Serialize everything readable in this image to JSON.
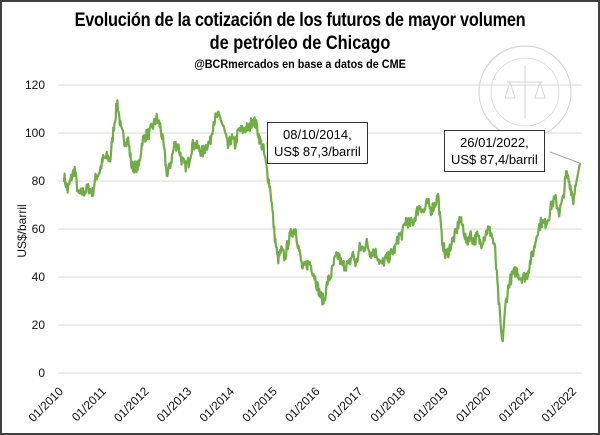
{
  "chart_data": {
    "type": "line",
    "title": "Evolución de la cotización de los futuros de mayor volumen",
    "title_line2": "de petróleo de Chicago",
    "subtitle": "@BCRmercados en base a datos de CME",
    "xlabel": "",
    "ylabel": "US$/barril",
    "ylim": [
      0,
      120
    ],
    "yticks": [
      0,
      20,
      40,
      60,
      80,
      100,
      120
    ],
    "xticks": [
      "01/2010",
      "01/2011",
      "01/2012",
      "01/2013",
      "01/2014",
      "01/2015",
      "01/2016",
      "01/2017",
      "01/2018",
      "01/2019",
      "01/2020",
      "01/2021",
      "01/2022"
    ],
    "grid": true,
    "line_color": "#70AD47",
    "x_start": "2010-01",
    "values_monthly": [
      82,
      76,
      81,
      85,
      74,
      75,
      76,
      77,
      75,
      82,
      84,
      89,
      90,
      89,
      103,
      113,
      101,
      97,
      97,
      86,
      86,
      86,
      97,
      99,
      100,
      103,
      106,
      103,
      94,
      82,
      88,
      95,
      95,
      89,
      86,
      88,
      95,
      95,
      93,
      92,
      95,
      96,
      105,
      107,
      106,
      101,
      94,
      98,
      95,
      101,
      101,
      102,
      102,
      106,
      103,
      97,
      93,
      84,
      76,
      59,
      47,
      51,
      48,
      55,
      59,
      60,
      51,
      43,
      45,
      46,
      42,
      37,
      32,
      30,
      38,
      41,
      47,
      49,
      45,
      45,
      45,
      50,
      45,
      52,
      52,
      54,
      50,
      51,
      49,
      45,
      47,
      48,
      50,
      52,
      57,
      58,
      64,
      62,
      63,
      67,
      70,
      67,
      71,
      68,
      70,
      74,
      57,
      49,
      51,
      55,
      58,
      64,
      61,
      54,
      58,
      55,
      57,
      54,
      57,
      60,
      58,
      51,
      30,
      12,
      29,
      38,
      41,
      43,
      40,
      40,
      41,
      47,
      52,
      60,
      63,
      62,
      65,
      71,
      72,
      67,
      72,
      83,
      79,
      72,
      84
    ],
    "final_point": {
      "date": "2022-01-26",
      "value": 87.4
    },
    "annotations": [
      {
        "date": "2014-10-08",
        "value": 87.3,
        "line1": "08/10/2014,",
        "line2": "US$ 87,3/barril"
      },
      {
        "date": "2022-01-26",
        "value": 87.4,
        "line1": "26/01/2022,",
        "line2": "US$ 87,4/barril"
      }
    ]
  },
  "watermark": {
    "text": "BOLSA DE COMERCIO DE ROSARIO"
  }
}
